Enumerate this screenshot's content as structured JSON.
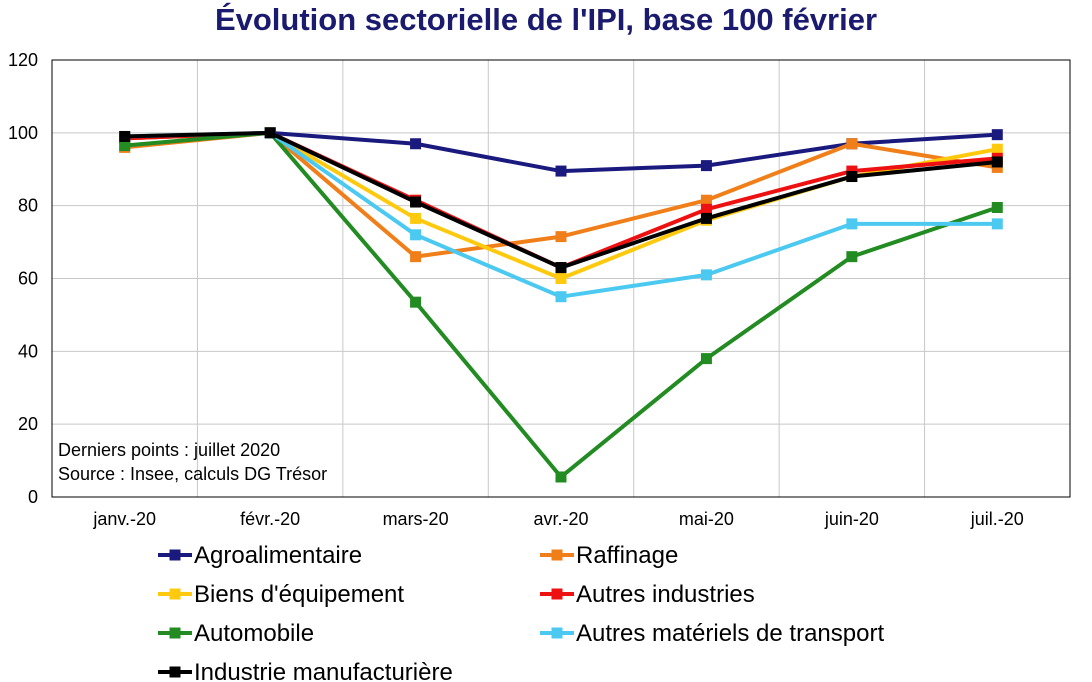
{
  "chart_data": {
    "type": "line",
    "title": "Évolution sectorielle de l'IPI, base 100 février",
    "categories": [
      "janv.-20",
      "févr.-20",
      "mars-20",
      "avr.-20",
      "mai-20",
      "juin-20",
      "juil.-20"
    ],
    "ylim": [
      0,
      120
    ],
    "yticks": [
      "0",
      "20",
      "40",
      "60",
      "80",
      "100",
      "120"
    ],
    "grid": true,
    "legend_position": "bottom",
    "notes": [
      "Derniers points : juillet 2020",
      "Source : Insee, calculs DG Trésor"
    ],
    "series": [
      {
        "name": "Agroalimentaire",
        "color": "#1a1a7e",
        "values": [
          98.5,
          100,
          97,
          89.5,
          91,
          97,
          99.5
        ]
      },
      {
        "name": "Raffinage",
        "color": "#f07f1a",
        "values": [
          96,
          100,
          66,
          71.5,
          81.5,
          97,
          90.5
        ]
      },
      {
        "name": "Biens d'équipement",
        "color": "#ffc90e",
        "values": [
          98.5,
          100,
          76.5,
          60,
          76,
          88,
          95.5
        ]
      },
      {
        "name": "Autres industries",
        "color": "#ee1111",
        "values": [
          98.5,
          100,
          81.5,
          63,
          79,
          89.5,
          93
        ]
      },
      {
        "name": "Automobile",
        "color": "#228b22",
        "values": [
          96.5,
          100,
          53.5,
          5.5,
          38,
          66,
          79.5
        ]
      },
      {
        "name": "Autres matériels de transport",
        "color": "#4cc9f0",
        "values": [
          99,
          100,
          72,
          55,
          61,
          75,
          75
        ]
      },
      {
        "name": "Industrie manufacturière",
        "color": "#000000",
        "values": [
          99,
          100,
          81,
          63,
          76.5,
          88,
          92
        ]
      }
    ]
  }
}
